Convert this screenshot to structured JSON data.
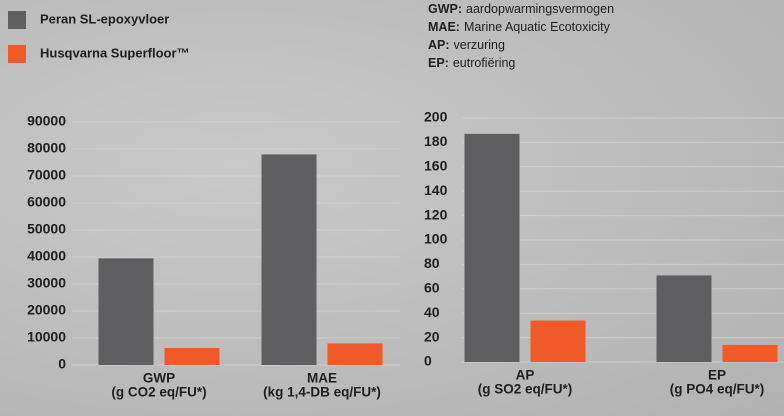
{
  "legend_position": "upper left",
  "notes": [
    {
      "term": "GWP:",
      "text": "aardopwarmingsvermogen"
    },
    {
      "term": "MAE:",
      "text": "Marine Aquatic Ecotoxicity"
    },
    {
      "term": "AP:",
      "text": "verzuring"
    },
    {
      "term": "EP:",
      "text": "eutrofiëring"
    }
  ],
  "chart_data": [
    {
      "type": "bar",
      "categories": [
        "GWP",
        "MAE"
      ],
      "category_units": [
        "(g CO2 eq/FU*)",
        "(kg 1,4-DB eq/FU*)"
      ],
      "series": [
        {
          "name": "Peran SL-epoxyvloer",
          "color": "#5f5f61",
          "values": [
            39500,
            78000
          ]
        },
        {
          "name": "Husqvarna Superfloor™",
          "color": "#f05a28",
          "values": [
            6300,
            8000
          ]
        }
      ],
      "ylim": [
        0,
        90000
      ],
      "yticks": [
        0,
        10000,
        20000,
        30000,
        40000,
        50000,
        60000,
        70000,
        80000,
        90000
      ],
      "grid": true
    },
    {
      "type": "bar",
      "categories": [
        "AP",
        "EP"
      ],
      "category_units": [
        "(g SO2 eq/FU*)",
        "(g PO4 eq/FU*)"
      ],
      "series": [
        {
          "name": "Peran SL-epoxyvloer",
          "color": "#5f5f61",
          "values": [
            187,
            71
          ]
        },
        {
          "name": "Husqvarna Superfloor™",
          "color": "#f05a28",
          "values": [
            34,
            14
          ]
        }
      ],
      "ylim": [
        0,
        200
      ],
      "yticks": [
        0,
        20,
        40,
        60,
        80,
        100,
        120,
        140,
        160,
        180,
        200
      ],
      "grid": true
    }
  ]
}
